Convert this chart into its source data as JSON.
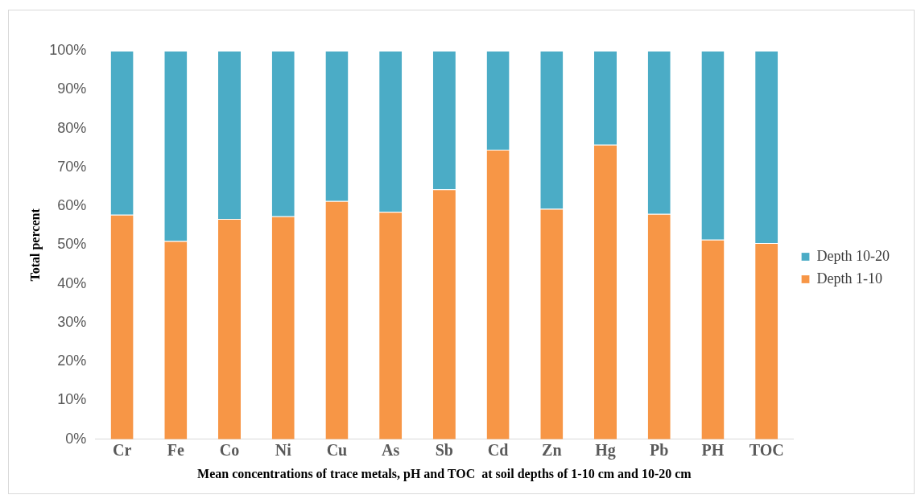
{
  "chart_data": {
    "type": "bar",
    "stacked": true,
    "xlabel": "Mean concentrations of trace metals, pH and TOC  at soil depths of 1-10 cm and 10-20 cm",
    "ylabel": "Total percent",
    "categories": [
      "Cr",
      "Fe",
      "Co",
      "Ni",
      "Cu",
      "As",
      "Sb",
      "Cd",
      "Zn",
      "Hg",
      "Pb",
      "PH",
      "TOC"
    ],
    "series": [
      {
        "name": "Depth 1-10",
        "color": "#f79646",
        "values": [
          57.8,
          51.0,
          56.7,
          57.4,
          61.3,
          58.5,
          64.3,
          74.5,
          59.3,
          75.8,
          58.0,
          51.4,
          50.5
        ]
      },
      {
        "name": "Depth 10-20",
        "color": "#4bacc6",
        "values": [
          42.2,
          49.0,
          43.3,
          42.6,
          38.7,
          41.5,
          35.7,
          25.5,
          40.7,
          24.2,
          42.0,
          48.6,
          49.5
        ]
      }
    ],
    "ylim": [
      0,
      100
    ],
    "yticks": [
      {
        "value": 0,
        "label": "0%"
      },
      {
        "value": 10,
        "label": "10%"
      },
      {
        "value": 20,
        "label": "20%"
      },
      {
        "value": 30,
        "label": "30%"
      },
      {
        "value": 40,
        "label": "40%"
      },
      {
        "value": 50,
        "label": "50%"
      },
      {
        "value": 60,
        "label": "60%"
      },
      {
        "value": 70,
        "label": "70%"
      },
      {
        "value": 80,
        "label": "80%"
      },
      {
        "value": 90,
        "label": "90%"
      },
      {
        "value": 100,
        "label": "100%"
      }
    ],
    "grid": false,
    "legend": "right"
  }
}
